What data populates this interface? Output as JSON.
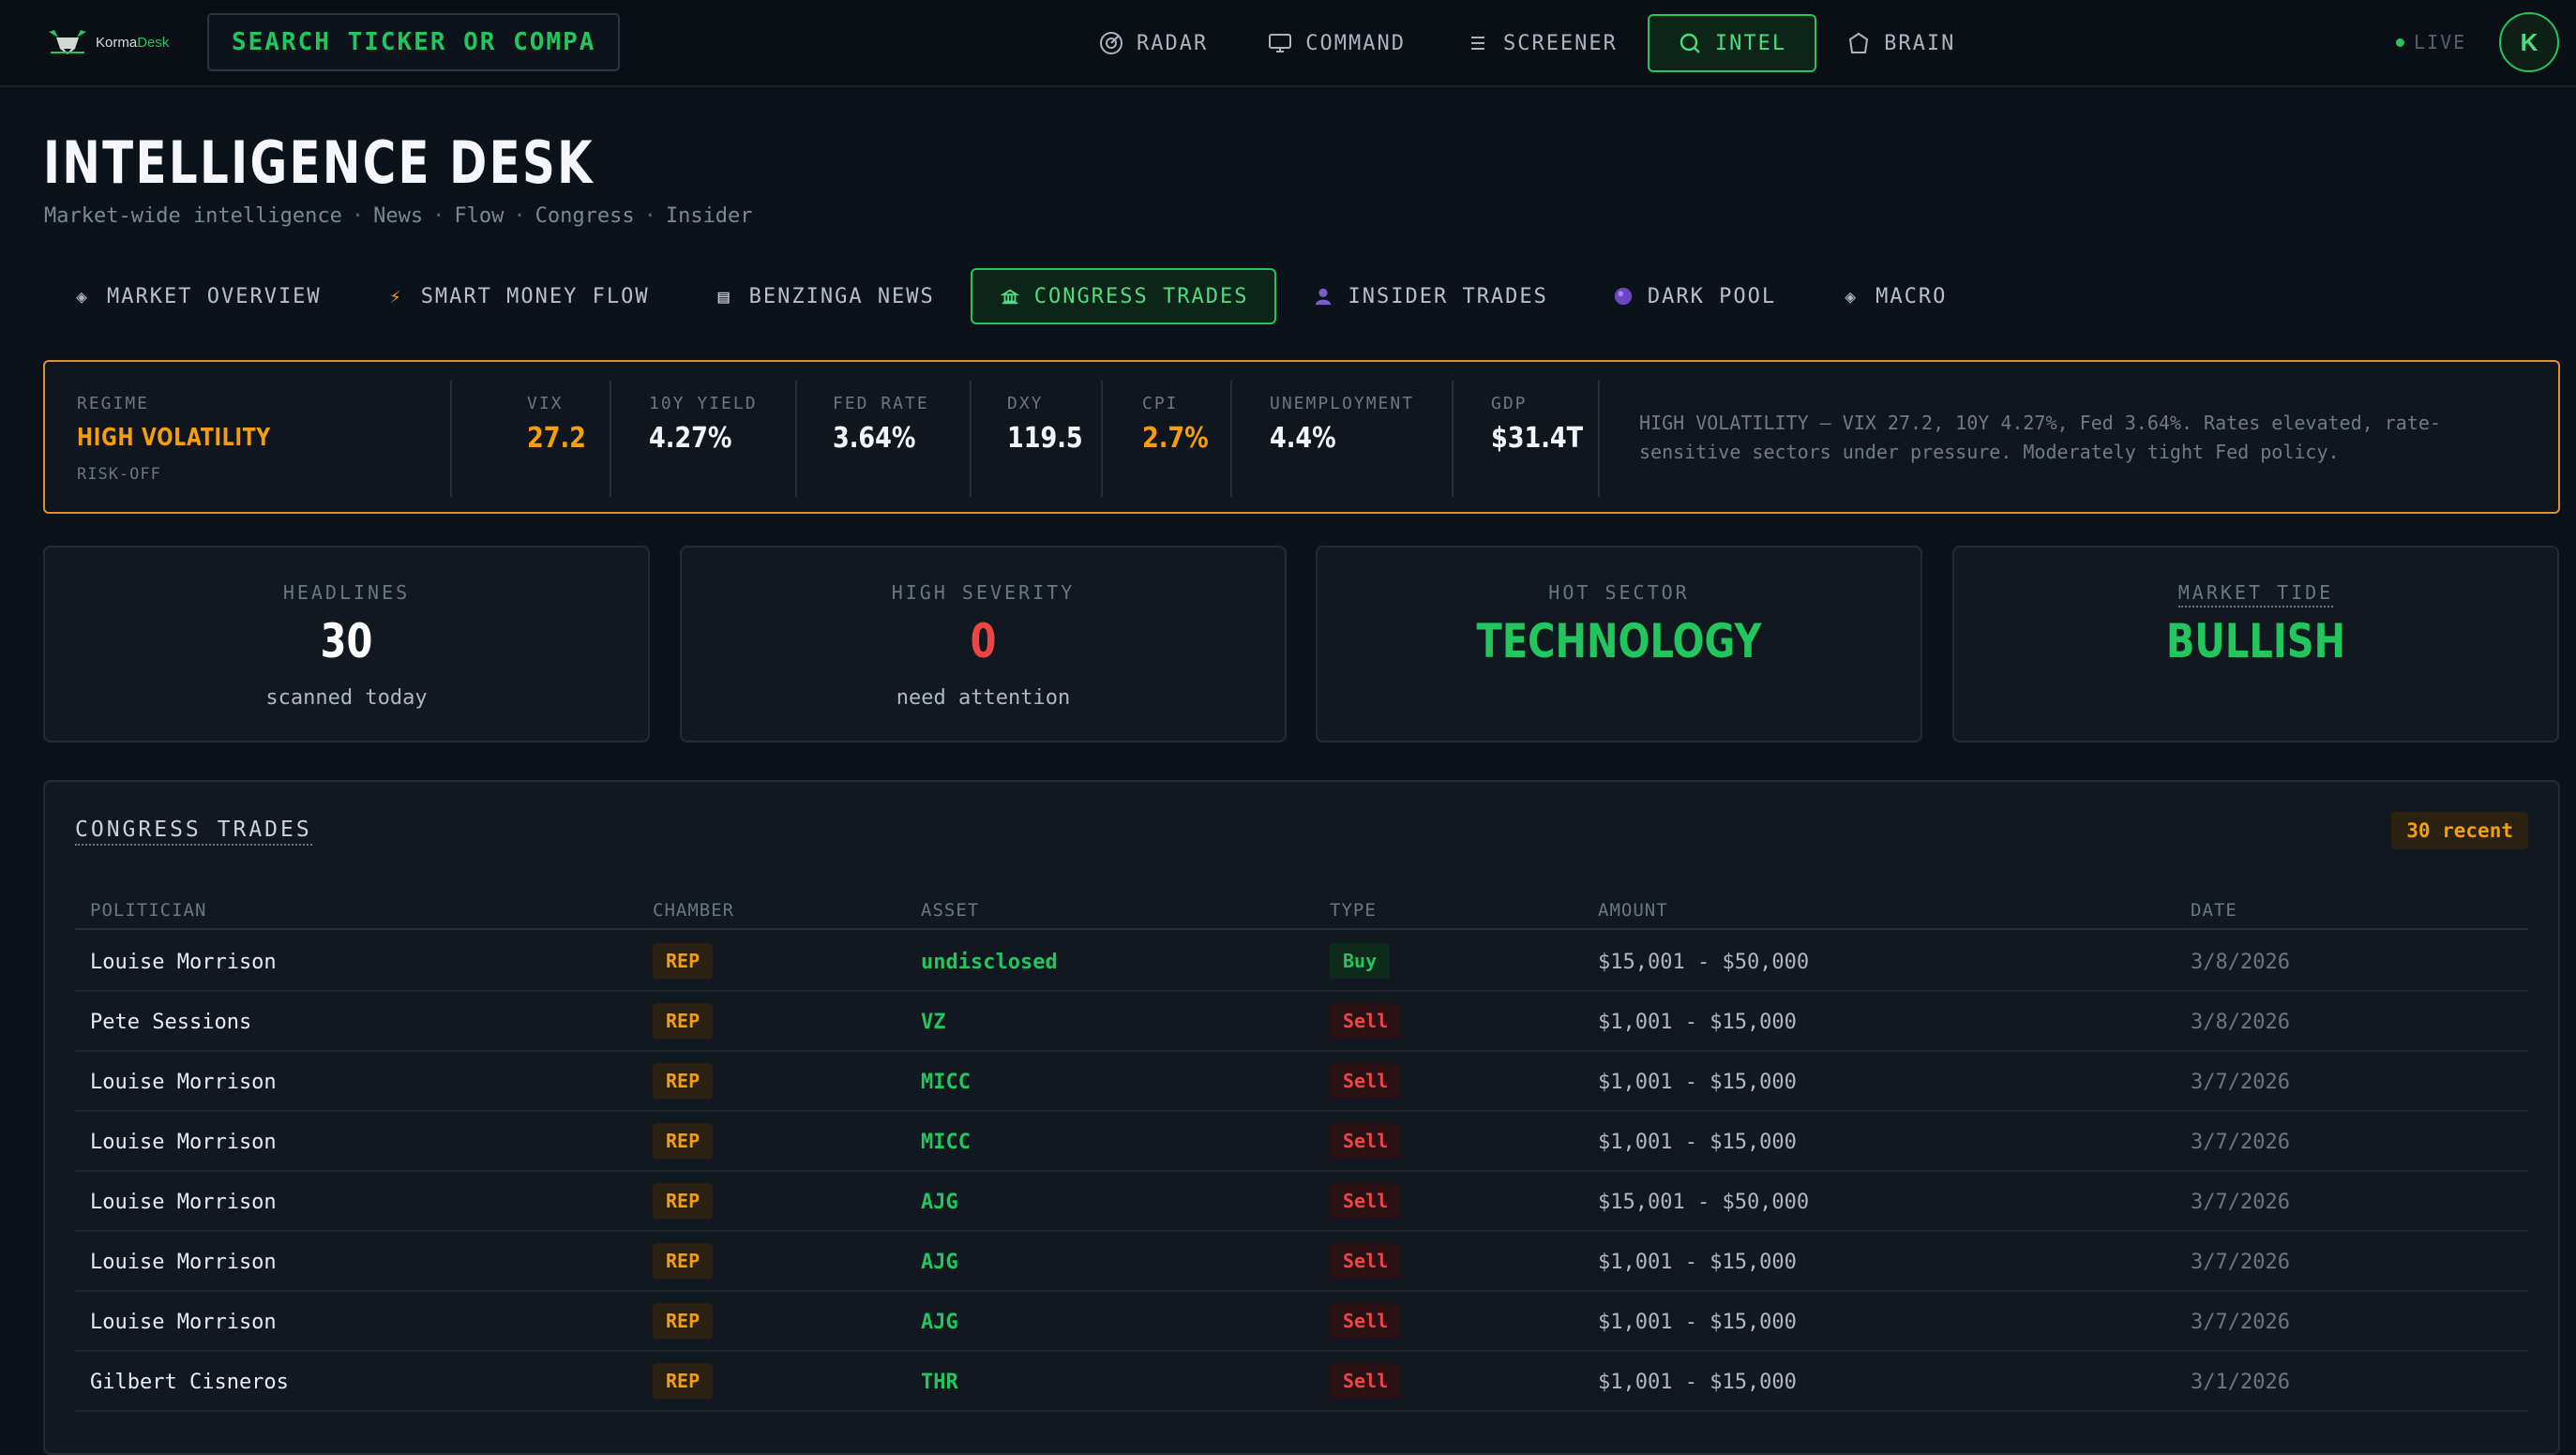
{
  "brand": {
    "name_plain": "Korma",
    "name_accent": "Desk"
  },
  "search": {
    "placeholder": "SEARCH TICKER OR COMPA"
  },
  "nav": {
    "items": [
      {
        "label": "RADAR",
        "icon": "radar-icon"
      },
      {
        "label": "COMMAND",
        "icon": "monitor-icon"
      },
      {
        "label": "SCREENER",
        "icon": "list-icon"
      },
      {
        "label": "INTEL",
        "icon": "search-icon",
        "active": true
      },
      {
        "label": "BRAIN",
        "icon": "brain-icon"
      }
    ],
    "live_label": "LIVE",
    "avatar_initial": "K"
  },
  "page": {
    "title": "INTELLIGENCE DESK",
    "subtitle_parts": [
      "Market-wide intelligence",
      "News",
      "Flow",
      "Congress",
      "Insider"
    ],
    "subtitle_separator": "·"
  },
  "tabs": [
    {
      "label": "MARKET OVERVIEW",
      "icon": "diamond-icon",
      "glyph": "◈"
    },
    {
      "label": "SMART MONEY FLOW",
      "icon": "lightning-icon",
      "glyph": "⚡"
    },
    {
      "label": "BENZINGA NEWS",
      "icon": "newspaper-icon",
      "glyph": "▤"
    },
    {
      "label": "CONGRESS TRADES",
      "icon": "capitol-icon",
      "glyph": "🏛",
      "active": true
    },
    {
      "label": "INSIDER TRADES",
      "icon": "person-icon",
      "glyph": "👤"
    },
    {
      "label": "DARK POOL",
      "icon": "orb-icon",
      "glyph": "●"
    },
    {
      "label": "MACRO",
      "icon": "diamond-icon",
      "glyph": "◈"
    }
  ],
  "regime": {
    "label": "REGIME",
    "name": "HIGH VOLATILITY",
    "sub": "RISK-OFF",
    "metrics": [
      {
        "label": "VIX",
        "value": "27.2",
        "highlight": true
      },
      {
        "label": "10Y YIELD",
        "value": "4.27%"
      },
      {
        "label": "FED RATE",
        "value": "3.64%"
      },
      {
        "label": "DXY",
        "value": "119.5"
      },
      {
        "label": "CPI",
        "value": "2.7%",
        "highlight": true
      },
      {
        "label": "UNEMPLOYMENT",
        "value": "4.4%"
      },
      {
        "label": "GDP",
        "value": "$31.4T"
      }
    ],
    "description": "HIGH VOLATILITY — VIX 27.2, 10Y 4.27%, Fed 3.64%. Rates elevated, rate-sensitive sectors under pressure. Moderately tight Fed policy."
  },
  "stats": [
    {
      "label": "HEADLINES",
      "value": "30",
      "sub": "scanned today"
    },
    {
      "label": "HIGH SEVERITY",
      "value": "0",
      "sub": "need attention"
    },
    {
      "label": "HOT SECTOR",
      "value": "TECHNOLOGY",
      "sub": ""
    },
    {
      "label": "MARKET TIDE",
      "value": "BULLISH",
      "sub": ""
    }
  ],
  "congress": {
    "title": "CONGRESS TRADES",
    "badge": "30 recent",
    "columns": [
      "POLITICIAN",
      "CHAMBER",
      "ASSET",
      "TYPE",
      "AMOUNT",
      "DATE"
    ],
    "rows": [
      {
        "politician": "Louise Morrison",
        "chamber": "REP",
        "asset": "undisclosed",
        "type": "Buy",
        "amount": "$15,001 - $50,000",
        "date": "3/8/2026"
      },
      {
        "politician": "Pete Sessions",
        "chamber": "REP",
        "asset": "VZ",
        "type": "Sell",
        "amount": "$1,001 - $15,000",
        "date": "3/8/2026"
      },
      {
        "politician": "Louise Morrison",
        "chamber": "REP",
        "asset": "MICC",
        "type": "Sell",
        "amount": "$1,001 - $15,000",
        "date": "3/7/2026"
      },
      {
        "politician": "Louise Morrison",
        "chamber": "REP",
        "asset": "MICC",
        "type": "Sell",
        "amount": "$1,001 - $15,000",
        "date": "3/7/2026"
      },
      {
        "politician": "Louise Morrison",
        "chamber": "REP",
        "asset": "AJG",
        "type": "Sell",
        "amount": "$15,001 - $50,000",
        "date": "3/7/2026"
      },
      {
        "politician": "Louise Morrison",
        "chamber": "REP",
        "asset": "AJG",
        "type": "Sell",
        "amount": "$1,001 - $15,000",
        "date": "3/7/2026"
      },
      {
        "politician": "Louise Morrison",
        "chamber": "REP",
        "asset": "AJG",
        "type": "Sell",
        "amount": "$1,001 - $15,000",
        "date": "3/7/2026"
      },
      {
        "politician": "Gilbert Cisneros",
        "chamber": "REP",
        "asset": "THR",
        "type": "Sell",
        "amount": "$1,001 - $15,000",
        "date": "3/1/2026"
      }
    ]
  },
  "colors": {
    "accent_green": "#22c55e",
    "accent_orange": "#f59e0b",
    "accent_red": "#ef4444",
    "background": "#0c1219"
  }
}
